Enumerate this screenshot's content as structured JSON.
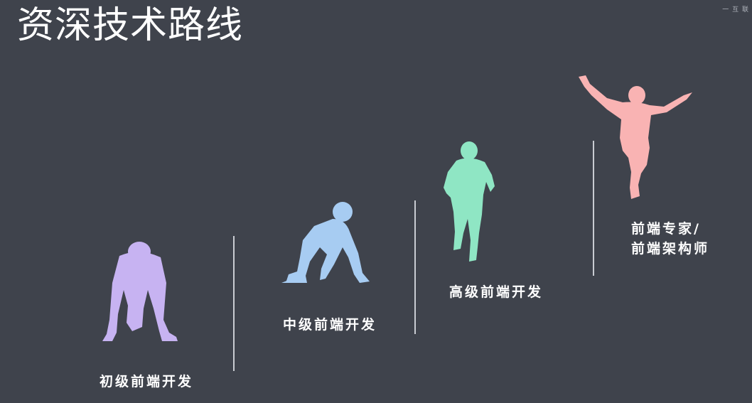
{
  "slide": {
    "title": "资深技术路线",
    "watermark": "一 互 联"
  },
  "stages": [
    {
      "label": "初级前端开发",
      "color": "#c7b3f2",
      "icon": "crouching-runner-icon"
    },
    {
      "label": "中级前端开发",
      "color": "#a7ccf2",
      "icon": "set-position-runner-icon"
    },
    {
      "label": "高级前端开发",
      "color": "#8fe6c4",
      "icon": "sprinting-runner-icon"
    },
    {
      "label_lines": [
        "前端专家/",
        "前端架构师"
      ],
      "color": "#f9b3b3",
      "icon": "victory-runner-icon"
    }
  ]
}
